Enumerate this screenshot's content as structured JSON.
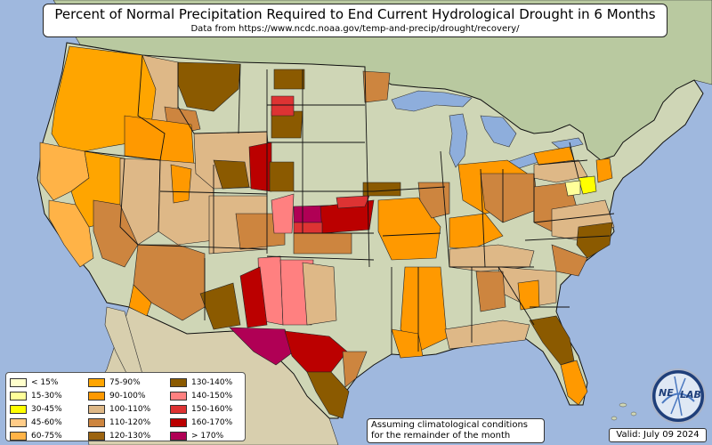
{
  "title": "Percent of Normal Precipitation Required to End Current Hydrological Drought in 6 Months",
  "subtitle": "Data from https://www.ncdc.noaa.gov/temp-and-precip/drought/recovery/",
  "legend": {
    "items": [
      {
        "label": "< 15%",
        "color": "#ffffcc"
      },
      {
        "label": "15-30%",
        "color": "#ffff99"
      },
      {
        "label": "30-45%",
        "color": "#ffff00"
      },
      {
        "label": "45-60%",
        "color": "#ffcc88"
      },
      {
        "label": "60-75%",
        "color": "#ffb347"
      },
      {
        "label": "75-90%",
        "color": "#ffa500"
      },
      {
        "label": "90-100%",
        "color": "#ff9900"
      },
      {
        "label": "100-110%",
        "color": "#deb887"
      },
      {
        "label": "110-120%",
        "color": "#cd853f"
      },
      {
        "label": "120-130%",
        "color": "#9c6410"
      },
      {
        "label": "130-140%",
        "color": "#8b5a00"
      },
      {
        "label": "140-150%",
        "color": "#ff8080"
      },
      {
        "label": "150-160%",
        "color": "#dd3333"
      },
      {
        "label": "160-170%",
        "color": "#bb0000"
      },
      {
        "label": "> 170%",
        "color": "#b00055"
      }
    ]
  },
  "note": {
    "line1": "Assuming climatological conditions",
    "line2": "for the remainder of the month"
  },
  "valid": "Valid: July 09 2024",
  "logo": {
    "text": "NE",
    "text2": "LAB"
  },
  "colors": {
    "ocean": "#9fb8de",
    "land": "#cfd6b6",
    "canada": "#b9c9a0",
    "mexico": "#d8cfae",
    "lakes": "#8eaedc",
    "border": "#111111"
  }
}
